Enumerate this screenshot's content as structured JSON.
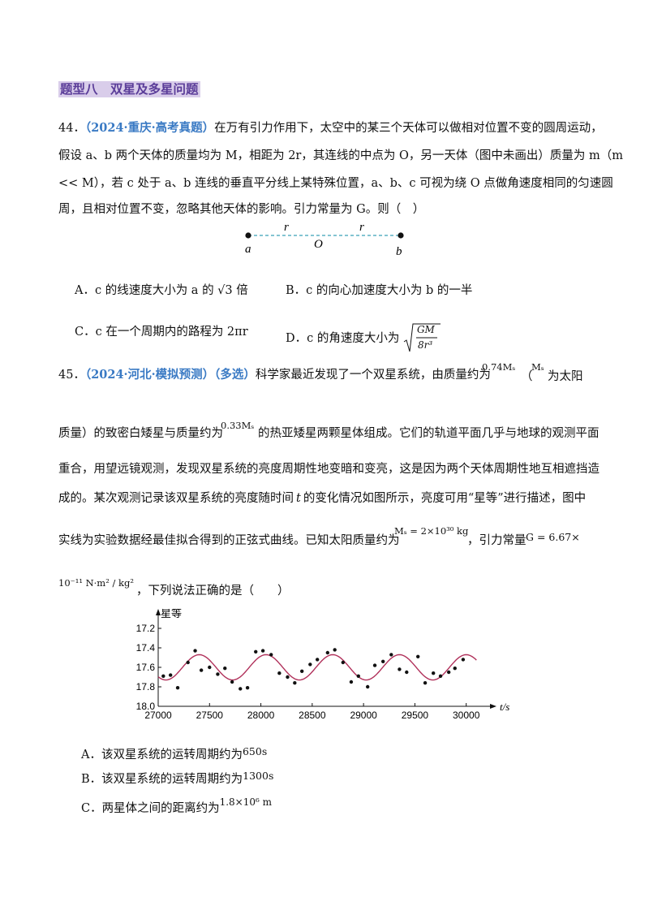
{
  "section_title": "题型八　双星及多星问题",
  "q44": {
    "number": "44．",
    "tag": "（2024·重庆·高考真题）",
    "line1": "在万有引力作用下，太空中的某三个天体可以做相对位置不变的圆周运动，",
    "line2": "假设 a、b 两个天体的质量均为 M，相距为 2r，其连线的中点为 O，另一天体（图中未画出）质量为 m（m",
    "line3": "<< M），若 c 处于 a、b 连线的垂直平分线上某特殊位置，a、b、c 可视为绕 O 点做角速度相同的匀速圆",
    "line4": "周，且相对位置不变，忽略其他天体的影响。引力常量为 G。则（　）",
    "diagram": {
      "label_a": "a",
      "label_b": "b",
      "label_O": "O",
      "label_r1": "r",
      "label_r2": "r"
    },
    "optA": "A．c 的线速度大小为 a 的 √3 倍",
    "optB": "B．c 的向心加速度大小为 b 的一半",
    "optC": "C．c 在一个周期内的路程为 2πr",
    "optD_text": "D．c 的角速度大小为",
    "optD_num": "GM",
    "optD_den": "8r³"
  },
  "q45": {
    "number": "45．",
    "tag": "（2024·河北·模拟预测）（多选）",
    "line1a": "科学家最近发现了一个双星系统，由质量约为",
    "m1": "0.74Mₛ",
    "paren_open": "（",
    "ms": "Mₛ",
    "line1b": "为太阳",
    "line2a": "质量）的致密白矮星与质量约为",
    "m2": "0.33Mₛ",
    "line2b": "的热亚矮星两颗星体组成。它们的轨道平面几乎与地球的观测平面",
    "line3": "重合，用望远镜观测，发现双星系统的亮度周期性地变暗和变亮，这是因为两个天体周期性地互相遮挡造",
    "line4a": "成的。某次观测记录该双星系统的亮度随时间",
    "t_sym": "t",
    "line4b": "的变化情况如图所示，亮度可用“星等”进行描述，图中",
    "line5a": "实线为实验数据经最佳拟合得到的正弦式曲线。已知太阳质量约为",
    "ms_val": "Mₛ = 2×10³⁰ kg",
    "line5b": "，引力常量",
    "g_val": "G = 6.67×",
    "line6a": "10⁻¹¹ N·m² / kg²",
    "line6b": "，下列说法正确的是（　　）",
    "optA_text": "A．该双星系统的运转周期约为",
    "optA_val": "650s",
    "optB_text": "B．该双星系统的运转周期约为",
    "optB_val": "1300s",
    "optC_text": "C．两星体之间的距离约为",
    "optC_val": "1.8×10⁶ m"
  },
  "chart_data": {
    "type": "scatter",
    "ylabel": "星等",
    "xlabel": "t/s",
    "xlim": [
      27000,
      30200
    ],
    "ylim": [
      18.0,
      17.1
    ],
    "x_ticks": [
      27000,
      27500,
      28000,
      28500,
      29000,
      29500,
      30000
    ],
    "x_tick_labels": [
      "27000",
      "27500",
      "28000",
      "28500",
      "29000",
      "29500",
      "30000"
    ],
    "y_ticks": [
      17.2,
      17.4,
      17.6,
      17.8,
      18.0
    ],
    "y_tick_labels": [
      "17.2",
      "17.4",
      "17.6",
      "17.8",
      "18.0"
    ],
    "fit": {
      "mean": 17.6,
      "amplitude": 0.13,
      "period": 650,
      "peak_t": 27400,
      "t_start": 27000,
      "t_end": 30100,
      "color": "#b0305a"
    },
    "points": [
      [
        27050,
        17.69
      ],
      [
        27120,
        17.68
      ],
      [
        27190,
        17.81
      ],
      [
        27290,
        17.55
      ],
      [
        27360,
        17.43
      ],
      [
        27420,
        17.63
      ],
      [
        27500,
        17.6
      ],
      [
        27580,
        17.67
      ],
      [
        27650,
        17.61
      ],
      [
        27720,
        17.75
      ],
      [
        27800,
        17.82
      ],
      [
        27870,
        17.81
      ],
      [
        27950,
        17.44
      ],
      [
        28020,
        17.43
      ],
      [
        28100,
        17.47
      ],
      [
        28180,
        17.66
      ],
      [
        28260,
        17.7
      ],
      [
        28330,
        17.76
      ],
      [
        28400,
        17.64
      ],
      [
        28480,
        17.57
      ],
      [
        28550,
        17.52
      ],
      [
        28650,
        17.45
      ],
      [
        28720,
        17.42
      ],
      [
        28800,
        17.55
      ],
      [
        28880,
        17.75
      ],
      [
        28950,
        17.69
      ],
      [
        29040,
        17.8
      ],
      [
        29110,
        17.58
      ],
      [
        29190,
        17.54
      ],
      [
        29270,
        17.47
      ],
      [
        29350,
        17.62
      ],
      [
        29420,
        17.65
      ],
      [
        29530,
        17.49
      ],
      [
        29600,
        17.76
      ],
      [
        29680,
        17.66
      ],
      [
        29750,
        17.69
      ],
      [
        29830,
        17.65
      ],
      [
        29890,
        17.61
      ],
      [
        29970,
        17.52
      ]
    ]
  }
}
